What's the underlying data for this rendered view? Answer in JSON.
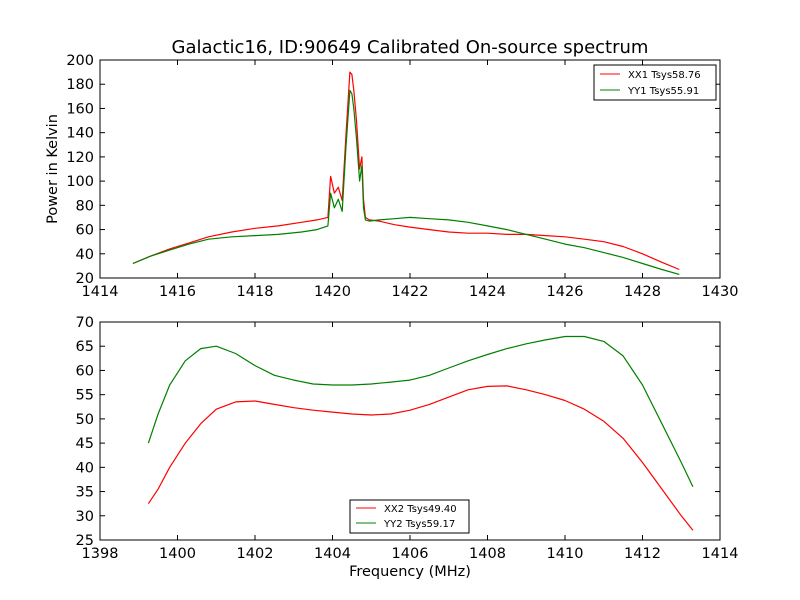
{
  "chart_data": [
    {
      "type": "line",
      "title": "Galactic16, ID:90649 Calibrated On-source spectrum",
      "xlabel": "",
      "ylabel": "Power in Kelvin",
      "xlim": [
        1414,
        1430
      ],
      "ylim": [
        20,
        200
      ],
      "xticks": [
        "1414",
        "1416",
        "1418",
        "1420",
        "1422",
        "1424",
        "1426",
        "1428",
        "1430"
      ],
      "yticks": [
        "20",
        "40",
        "60",
        "80",
        "100",
        "120",
        "140",
        "160",
        "180",
        "200"
      ],
      "legend_position": "top-right",
      "grid": false,
      "series": [
        {
          "name": "XX1 Tsys58.76",
          "color": "#ff0000",
          "x": [
            1414.85,
            1415.3,
            1415.8,
            1416.3,
            1416.8,
            1417.4,
            1418.0,
            1418.6,
            1419.2,
            1419.6,
            1419.88,
            1419.95,
            1420.05,
            1420.15,
            1420.25,
            1420.35,
            1420.45,
            1420.5,
            1420.55,
            1420.62,
            1420.7,
            1420.76,
            1420.8,
            1420.85,
            1420.95,
            1421.2,
            1421.6,
            1422.0,
            1422.5,
            1423.0,
            1423.5,
            1424.0,
            1424.5,
            1425.0,
            1425.5,
            1426.0,
            1426.5,
            1427.0,
            1427.5,
            1428.0,
            1428.5,
            1428.95
          ],
          "y": [
            32,
            38,
            44,
            49,
            54,
            58,
            61,
            63,
            66,
            68,
            70,
            104,
            90,
            95,
            84,
            140,
            190,
            188,
            175,
            150,
            110,
            120,
            85,
            70,
            68,
            67,
            64,
            62,
            60,
            58,
            57,
            57,
            56,
            56,
            55,
            54,
            52,
            50,
            46,
            40,
            33,
            27
          ]
        },
        {
          "name": "YY1 Tsys55.91",
          "color": "#008000",
          "x": [
            1414.85,
            1415.3,
            1415.8,
            1416.3,
            1416.8,
            1417.4,
            1418.0,
            1418.6,
            1419.2,
            1419.6,
            1419.88,
            1419.95,
            1420.05,
            1420.15,
            1420.25,
            1420.35,
            1420.45,
            1420.5,
            1420.55,
            1420.62,
            1420.7,
            1420.76,
            1420.8,
            1420.85,
            1420.95,
            1421.2,
            1421.6,
            1422.0,
            1422.5,
            1423.0,
            1423.5,
            1424.0,
            1424.5,
            1425.0,
            1425.5,
            1426.0,
            1426.5,
            1427.0,
            1427.5,
            1428.0,
            1428.5,
            1428.95
          ],
          "y": [
            32,
            38,
            43,
            48,
            52,
            54,
            55,
            56,
            58,
            60,
            63,
            90,
            78,
            85,
            75,
            130,
            175,
            172,
            160,
            135,
            100,
            113,
            78,
            68,
            67,
            68,
            69,
            70,
            69,
            68,
            66,
            63,
            60,
            56,
            52,
            48,
            45,
            41,
            37,
            32,
            27,
            23
          ]
        }
      ]
    },
    {
      "type": "line",
      "title": "",
      "xlabel": "Frequency (MHz)",
      "ylabel": "",
      "xlim": [
        1398,
        1414
      ],
      "ylim": [
        25,
        70
      ],
      "xticks": [
        "1398",
        "1400",
        "1402",
        "1404",
        "1406",
        "1408",
        "1410",
        "1412",
        "1414"
      ],
      "yticks": [
        "25",
        "30",
        "35",
        "40",
        "45",
        "50",
        "55",
        "60",
        "65",
        "70"
      ],
      "legend_position": "bottom-center",
      "grid": false,
      "series": [
        {
          "name": "XX2 Tsys49.40",
          "color": "#ff0000",
          "x": [
            1399.25,
            1399.5,
            1399.8,
            1400.2,
            1400.6,
            1401.0,
            1401.5,
            1402.0,
            1402.5,
            1403.0,
            1403.5,
            1404.0,
            1404.5,
            1405.0,
            1405.5,
            1406.0,
            1406.5,
            1407.0,
            1407.5,
            1408.0,
            1408.5,
            1409.0,
            1409.5,
            1410.0,
            1410.5,
            1411.0,
            1411.5,
            1412.0,
            1412.5,
            1413.0,
            1413.3
          ],
          "y": [
            32.5,
            35.5,
            40,
            45,
            49,
            52,
            53.5,
            53.7,
            53,
            52.3,
            51.8,
            51.4,
            51,
            50.8,
            51,
            51.8,
            53,
            54.5,
            56,
            56.7,
            56.8,
            56,
            55,
            53.8,
            52,
            49.5,
            46,
            41,
            35.5,
            30,
            27
          ]
        },
        {
          "name": "YY2 Tsys59.17",
          "color": "#008000",
          "x": [
            1399.25,
            1399.5,
            1399.8,
            1400.2,
            1400.6,
            1401.0,
            1401.5,
            1402.0,
            1402.5,
            1403.0,
            1403.5,
            1404.0,
            1404.5,
            1405.0,
            1405.5,
            1406.0,
            1406.5,
            1407.0,
            1407.5,
            1408.0,
            1408.5,
            1409.0,
            1409.5,
            1410.0,
            1410.5,
            1411.0,
            1411.5,
            1412.0,
            1412.5,
            1413.0,
            1413.3
          ],
          "y": [
            45,
            51,
            57,
            62,
            64.5,
            65,
            63.5,
            61,
            59,
            58,
            57.2,
            57,
            57,
            57.2,
            57.6,
            58,
            59,
            60.5,
            62,
            63.3,
            64.5,
            65.5,
            66.3,
            67,
            67,
            66,
            63,
            57,
            49,
            41,
            36
          ]
        }
      ]
    }
  ]
}
